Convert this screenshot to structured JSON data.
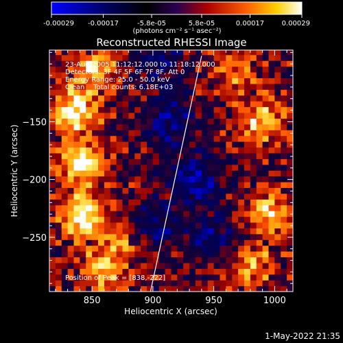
{
  "chart_data": {
    "type": "heatmap",
    "title": "Reconstructed RHESSI Image",
    "xlabel": "Heliocentric X (arcsec)",
    "ylabel": "Heliocentric Y (arcsec)",
    "xlim": [
      815,
      1015
    ],
    "ylim": [
      -297,
      -88
    ],
    "x_ticks": [
      850,
      900,
      950,
      1000
    ],
    "y_ticks": [
      -150,
      -200,
      -250
    ],
    "colorbar": {
      "range": [
        -0.00029,
        0.00029
      ],
      "ticks": [
        {
          "value": -0.00029,
          "label": "-0.00029"
        },
        {
          "value": -0.00017,
          "label": "-0.00017"
        },
        {
          "value": -5.8e-05,
          "label": "-5.8e-05"
        },
        {
          "value": 5.8e-05,
          "label": "5.8e-05"
        },
        {
          "value": 0.00017,
          "label": "0.00017"
        },
        {
          "value": 0.00029,
          "label": "0.00029"
        }
      ],
      "unit_label": "(photons cm⁻² s⁻¹ asec⁻²)",
      "colors": [
        "#0000ff",
        "#000000",
        "#5a10c0",
        "#cc1000",
        "#ff8000",
        "#ffff60",
        "#ffffff"
      ]
    },
    "annotations": [
      "23-Aug-2005 11:12:12.000 to 11:18:12.000",
      "Detectors: 3F 4F 5F 6F 7F 8F, Att 0",
      "Energy Range: 25.0 - 50.0 keV",
      "Clean    Total counts: 6.18E+03"
    ],
    "peak_label": "Position of Peak = [838,-222]",
    "limb_line": [
      [
        898,
        -297
      ],
      [
        940,
        -93
      ]
    ],
    "hot_regions": [
      {
        "x": 836,
        "y": -140,
        "strength": 0.92
      },
      {
        "x": 840,
        "y": -185,
        "strength": 0.95
      },
      {
        "x": 842,
        "y": -230,
        "strength": 0.95
      },
      {
        "x": 852,
        "y": -105,
        "strength": 0.7
      },
      {
        "x": 874,
        "y": -255,
        "strength": 0.55
      },
      {
        "x": 860,
        "y": -280,
        "strength": 0.6
      },
      {
        "x": 990,
        "y": -150,
        "strength": 0.65
      },
      {
        "x": 995,
        "y": -230,
        "strength": 0.75
      },
      {
        "x": 980,
        "y": -275,
        "strength": 0.55
      },
      {
        "x": 968,
        "y": -110,
        "strength": 0.45
      }
    ],
    "cold_regions": [
      {
        "x": 915,
        "y": -150,
        "strength": 0.6
      },
      {
        "x": 935,
        "y": -200,
        "strength": 0.65
      },
      {
        "x": 900,
        "y": -240,
        "strength": 0.55
      },
      {
        "x": 905,
        "y": -95,
        "strength": 0.5
      },
      {
        "x": 950,
        "y": -250,
        "strength": 0.45
      }
    ]
  },
  "timestamp": "1-May-2022 21:35"
}
